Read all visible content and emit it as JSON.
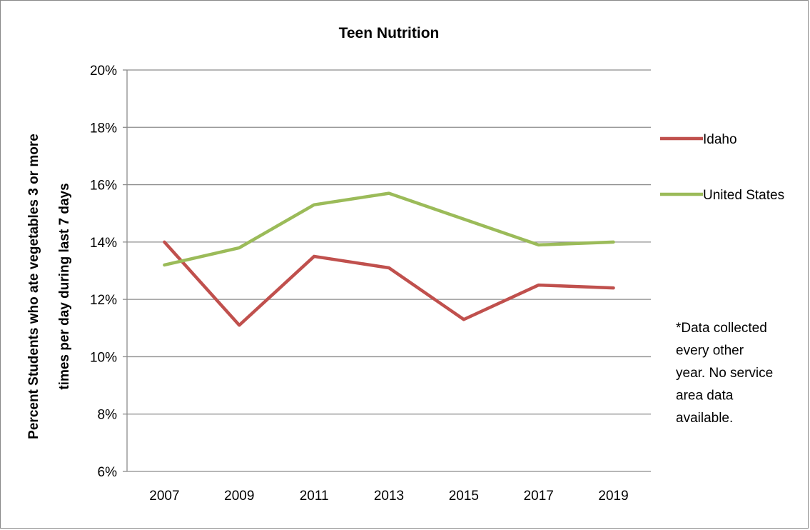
{
  "chart_data": {
    "type": "line",
    "title": "Teen Nutrition",
    "ylabel_lines": [
      "Percent Students who ate vegetables 3 or more",
      "times per day during last 7 days"
    ],
    "xlabel": "",
    "x": [
      "2007",
      "2009",
      "2011",
      "2013",
      "2015",
      "2017",
      "2019"
    ],
    "ylim": [
      0.06,
      0.2
    ],
    "yticks": [
      0.06,
      0.08,
      0.1,
      0.12,
      0.14,
      0.16,
      0.18,
      0.2
    ],
    "ytick_labels": [
      "6%",
      "8%",
      "10%",
      "12%",
      "14%",
      "16%",
      "18%",
      "20%"
    ],
    "grid": true,
    "legend_position": "right",
    "series": [
      {
        "name": "Idaho",
        "color": "#c0504d",
        "values": [
          0.14,
          0.111,
          0.135,
          0.131,
          0.113,
          0.125,
          0.124
        ]
      },
      {
        "name": "United States",
        "color": "#9bbb59",
        "values": [
          0.132,
          0.138,
          0.153,
          0.157,
          0.148,
          0.139,
          0.14
        ]
      }
    ],
    "annotation_lines": [
      "*Data collected",
      "every other",
      "year. No service",
      "area data",
      "available."
    ]
  }
}
